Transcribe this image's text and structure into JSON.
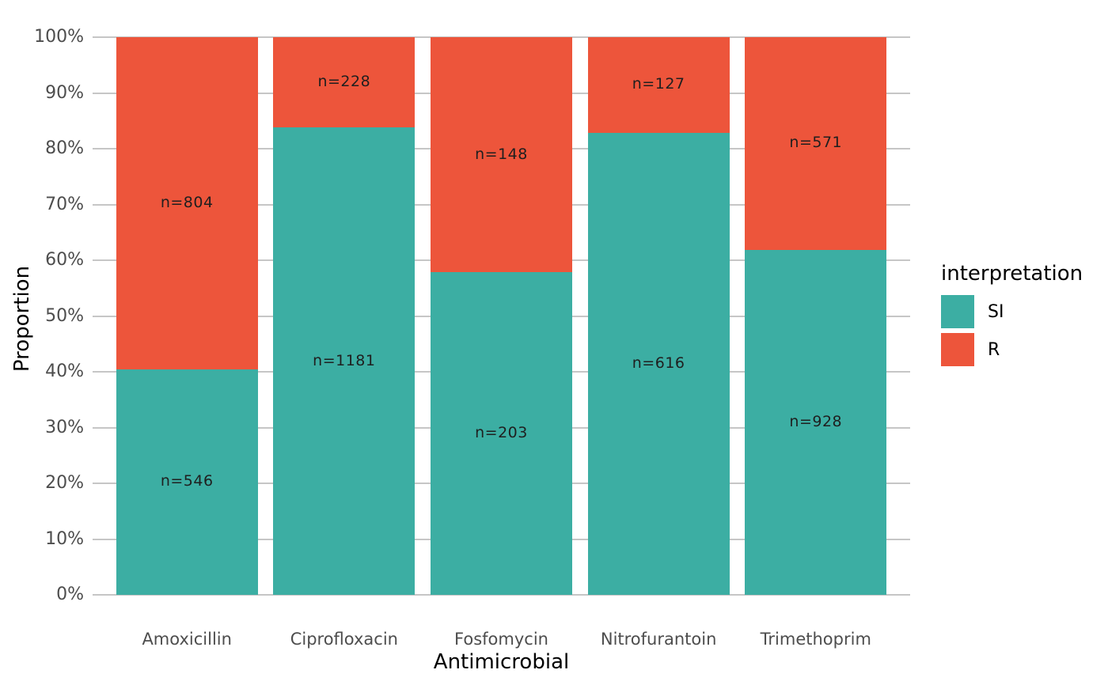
{
  "chart_data": {
    "type": "bar",
    "variant": "stacked-percent",
    "title": "",
    "xlabel": "Antimicrobial",
    "ylabel": "Proportion",
    "categories": [
      "Amoxicillin",
      "Ciprofloxacin",
      "Fosfomycin",
      "Nitrofurantoin",
      "Trimethoprim"
    ],
    "series": [
      {
        "name": "SI",
        "color": "#3CAEA3",
        "values": [
          546,
          1181,
          203,
          616,
          928
        ],
        "labels": [
          "n=546",
          "n=1181",
          "n=203",
          "n=616",
          "n=928"
        ]
      },
      {
        "name": "R",
        "color": "#ED553B",
        "values": [
          804,
          228,
          148,
          127,
          571
        ],
        "labels": [
          "n=804",
          "n=228",
          "n=148",
          "n=127",
          "n=571"
        ]
      }
    ],
    "y_ticks": [
      "0%",
      "10%",
      "20%",
      "30%",
      "40%",
      "50%",
      "60%",
      "70%",
      "80%",
      "90%",
      "100%"
    ],
    "ylim": [
      0,
      100
    ],
    "grid": "horizontal-major",
    "legend": {
      "title": "interpretation",
      "position": "right"
    },
    "colors": {
      "gridline": "#C6C6C6",
      "axis_text": "#4D4D4D",
      "axis_title": "#000000",
      "bar_label": "#1F1F1F"
    }
  }
}
